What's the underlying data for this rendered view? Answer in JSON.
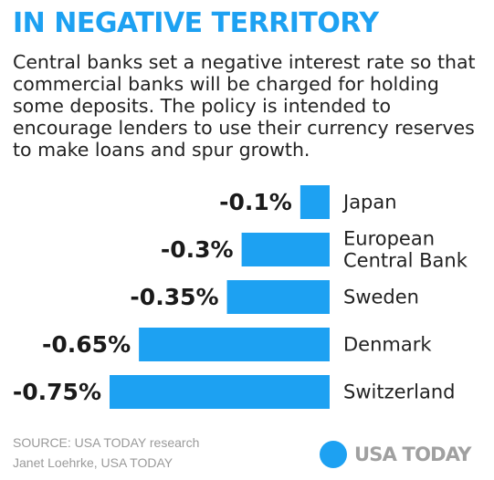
{
  "title": "IN NEGATIVE TERRITORY",
  "description": "Central banks set a negative interest rate so that commercial banks will be charged for holding some deposits. The policy is intended to encourage lenders to use their currency reserves to make loans and spur growth.",
  "chart_data": {
    "type": "bar",
    "orientation": "horizontal",
    "categories": [
      [
        "Japan"
      ],
      [
        "European",
        "Central Bank"
      ],
      [
        "Sweden"
      ],
      [
        "Denmark"
      ],
      [
        "Switzerland"
      ]
    ],
    "values": [
      -0.1,
      -0.3,
      -0.35,
      -0.65,
      -0.75
    ],
    "value_labels": [
      "-0.1%",
      "-0.3%",
      "-0.35%",
      "-0.65%",
      "-0.75%"
    ],
    "title": "",
    "xlabel": "",
    "ylabel": "",
    "xlim": [
      -0.75,
      0
    ],
    "grid": false,
    "legend": "none",
    "bar_color": "#1da1f2"
  },
  "footer": {
    "source": "SOURCE:  USA TODAY research",
    "credit": "Janet Loehrke, USA TODAY",
    "logo_text": "USA TODAY"
  },
  "colors": {
    "accent": "#1da1f2",
    "text": "#222222",
    "muted": "#9a9a9a"
  }
}
